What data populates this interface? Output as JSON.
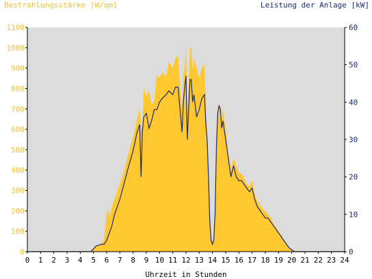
{
  "chart_data": {
    "type": "area",
    "y_left_label": "Bestrahlungsstärke [W/qm]",
    "y_right_label": "Leistung der Anlage [kW]",
    "xlabel": "Uhrzeit in Stunden",
    "xlim": [
      0,
      24
    ],
    "ylim_left": [
      0,
      1100
    ],
    "ylim_right": [
      0,
      60
    ],
    "x_ticks": [
      0,
      1,
      2,
      3,
      4,
      5,
      6,
      7,
      8,
      9,
      10,
      11,
      12,
      13,
      14,
      15,
      16,
      17,
      18,
      19,
      20,
      21,
      22,
      23,
      24
    ],
    "y_left_ticks": [
      0,
      100,
      200,
      300,
      400,
      500,
      600,
      700,
      800,
      900,
      1000,
      1100
    ],
    "y_right_ticks": [
      0,
      10,
      20,
      30,
      40,
      50,
      60
    ],
    "grid": false,
    "colors": {
      "plot_bg": "#dcdcdc",
      "irradiance": "#ffc830",
      "power": "#1a2a6e",
      "left_axis_text": "#f0c030"
    },
    "series": [
      {
        "name": "Bestrahlungsstärke [W/qm]",
        "axis": "left",
        "type": "area",
        "x": [
          0,
          4.8,
          5.2,
          5.6,
          5.8,
          5.9,
          6.0,
          6.1,
          6.2,
          6.4,
          6.6,
          7.0,
          7.3,
          7.6,
          8.0,
          8.3,
          8.5,
          8.6,
          8.7,
          8.8,
          9.0,
          9.2,
          9.4,
          9.6,
          9.8,
          10.0,
          10.2,
          10.5,
          10.7,
          11.0,
          11.2,
          11.4,
          11.5,
          11.6,
          11.7,
          11.8,
          11.9,
          12.0,
          12.1,
          12.2,
          12.3,
          12.4,
          12.5,
          12.6,
          12.8,
          13.0,
          13.2,
          13.4,
          13.5,
          13.6,
          13.7,
          13.8,
          13.9,
          14.0,
          14.1,
          14.2,
          14.3,
          14.4,
          14.5,
          14.6,
          14.7,
          14.8,
          15.0,
          15.2,
          15.4,
          15.6,
          15.8,
          16.0,
          16.2,
          16.4,
          16.6,
          16.8,
          17.0,
          17.2,
          17.4,
          17.6,
          17.8,
          18.0,
          18.2,
          18.4,
          18.6,
          18.8,
          19.0,
          19.2,
          19.4,
          19.6,
          19.8,
          20.0,
          20.2,
          20.5,
          24
        ],
        "y": [
          0,
          0,
          25,
          40,
          60,
          120,
          180,
          210,
          170,
          220,
          260,
          330,
          390,
          470,
          560,
          650,
          700,
          620,
          600,
          800,
          760,
          790,
          720,
          740,
          870,
          850,
          880,
          860,
          930,
          900,
          950,
          960,
          850,
          780,
          700,
          870,
          900,
          1010,
          650,
          820,
          1000,
          1000,
          880,
          950,
          900,
          850,
          900,
          920,
          700,
          600,
          400,
          200,
          80,
          50,
          60,
          150,
          500,
          680,
          700,
          720,
          650,
          700,
          600,
          480,
          400,
          460,
          420,
          390,
          380,
          360,
          330,
          320,
          350,
          280,
          250,
          230,
          210,
          200,
          180,
          170,
          140,
          120,
          100,
          80,
          60,
          40,
          20,
          10,
          5,
          0,
          0
        ]
      },
      {
        "name": "Leistung der Anlage [kW]",
        "axis": "right",
        "type": "line",
        "x": [
          0,
          4.8,
          5.2,
          5.6,
          5.8,
          6.0,
          6.2,
          6.4,
          6.6,
          7.0,
          7.3,
          7.6,
          8.0,
          8.3,
          8.5,
          8.6,
          8.7,
          8.8,
          9.0,
          9.2,
          9.4,
          9.6,
          9.8,
          10.0,
          10.2,
          10.5,
          10.7,
          11.0,
          11.2,
          11.4,
          11.5,
          11.6,
          11.7,
          11.8,
          11.9,
          12.0,
          12.1,
          12.2,
          12.3,
          12.4,
          12.5,
          12.6,
          12.8,
          13.0,
          13.2,
          13.4,
          13.5,
          13.6,
          13.7,
          13.8,
          13.9,
          14.0,
          14.1,
          14.2,
          14.3,
          14.4,
          14.5,
          14.6,
          14.7,
          14.8,
          15.0,
          15.2,
          15.4,
          15.6,
          15.8,
          16.0,
          16.2,
          16.4,
          16.6,
          16.8,
          17.0,
          17.2,
          17.4,
          17.6,
          17.8,
          18.0,
          18.2,
          18.4,
          18.6,
          18.8,
          19.0,
          19.2,
          19.4,
          19.6,
          19.8,
          20.0,
          20.2,
          20.5,
          24
        ],
        "y": [
          0,
          0,
          1.5,
          2,
          2,
          3,
          5,
          7,
          10,
          14,
          18,
          22,
          27,
          32,
          34,
          20,
          32,
          36,
          37,
          33,
          35,
          38,
          38,
          40,
          41,
          42,
          43,
          42,
          44,
          44,
          40,
          36,
          32,
          40,
          44,
          47,
          30,
          38,
          46,
          46,
          40,
          42,
          36,
          38,
          41,
          42,
          34,
          30,
          20,
          8,
          3,
          2,
          3,
          10,
          28,
          37,
          39,
          38,
          33,
          35,
          30,
          25,
          20,
          23,
          20,
          19,
          19,
          18,
          17,
          16,
          17,
          14,
          12,
          11,
          10,
          9,
          9,
          8,
          7,
          6,
          5,
          4,
          3,
          2,
          1,
          0.5,
          0,
          0,
          0
        ]
      }
    ]
  }
}
